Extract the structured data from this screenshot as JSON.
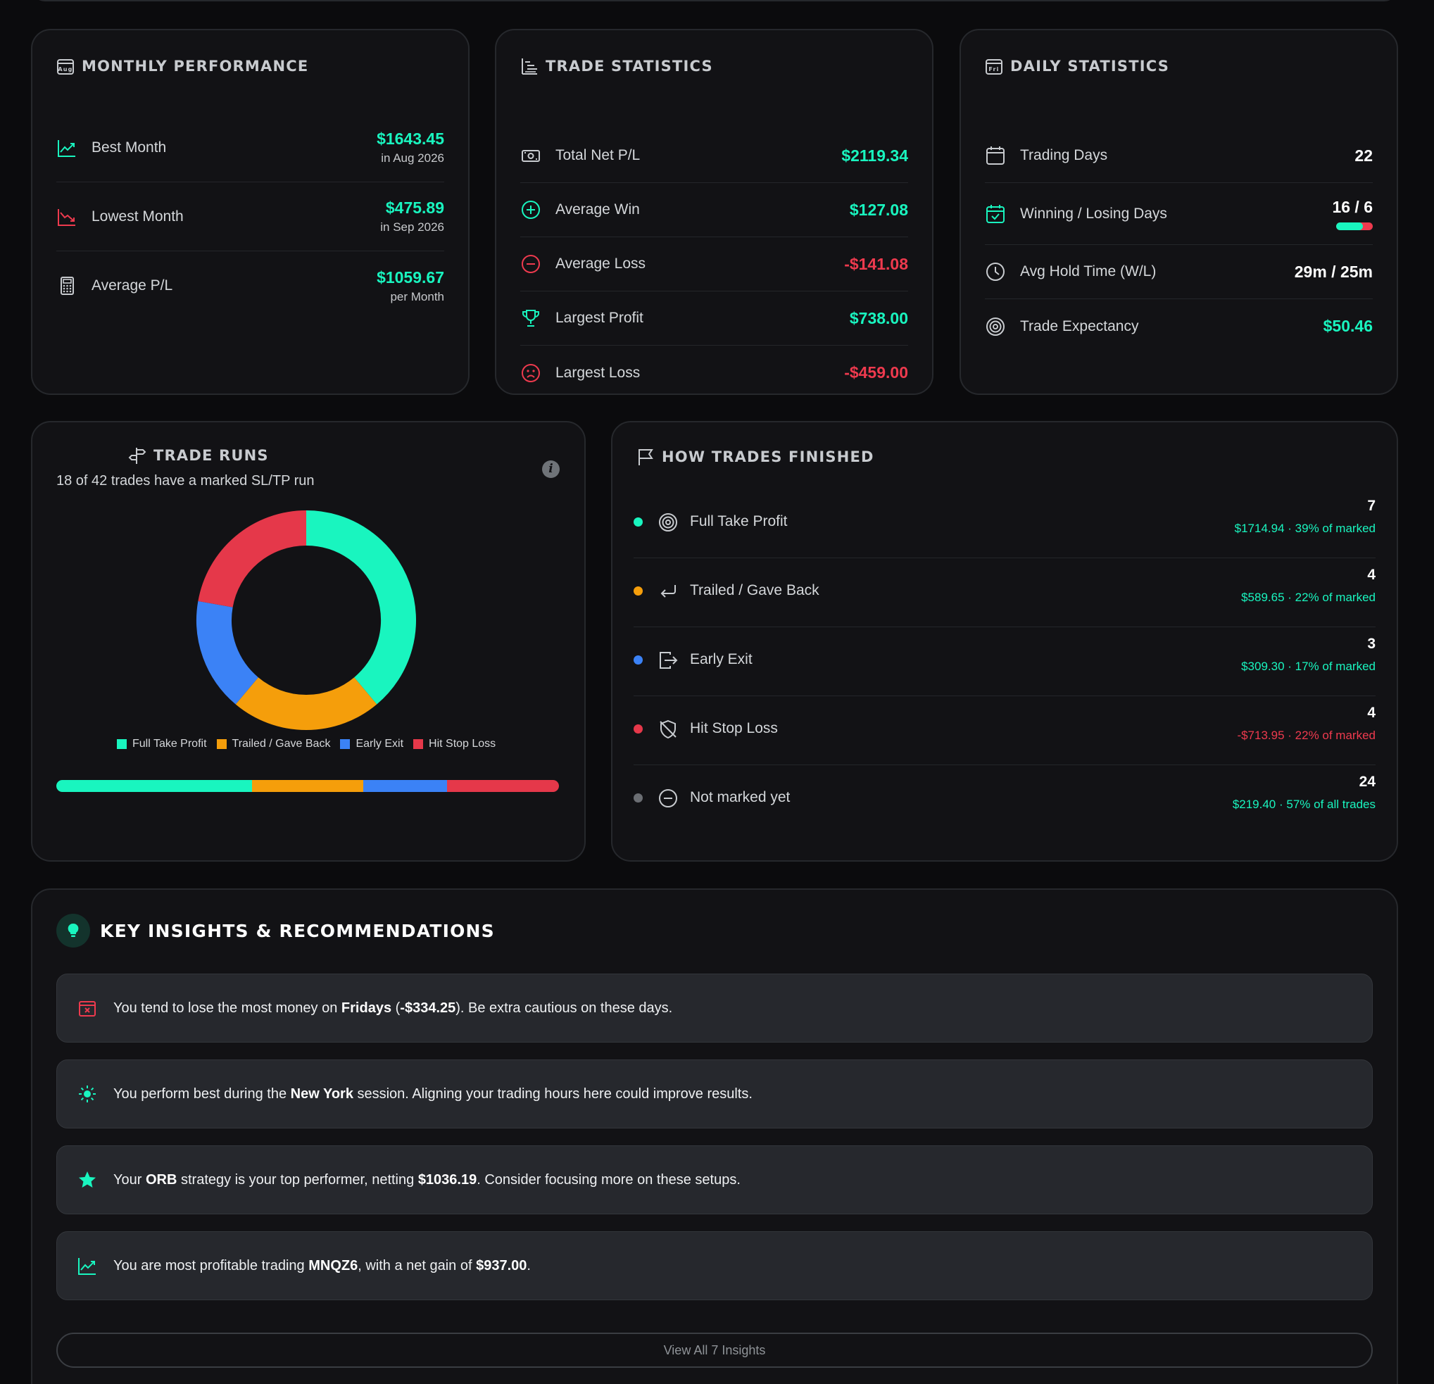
{
  "colors": {
    "green": "#19f5bf",
    "orange": "#f59e0b",
    "blue": "#3b82f6",
    "red": "#e5384a",
    "gray": "#6b6e73"
  },
  "monthly": {
    "title": "MONTHLY PERFORMANCE",
    "icon": "calendar-aug-icon",
    "icon_text": "Aug",
    "rows": [
      {
        "label": "Best Month",
        "value": "$1643.45",
        "sub": "in Aug 2026",
        "icon": "trending-up-icon"
      },
      {
        "label": "Lowest Month",
        "value": "$475.89",
        "sub": "in Sep 2026",
        "icon": "trending-down-icon"
      },
      {
        "label": "Average P/L",
        "value": "$1059.67",
        "sub": "per Month",
        "icon": "calculator-icon"
      }
    ]
  },
  "trade_stats": {
    "title": "TRADE STATISTICS",
    "icon": "list-bars-icon",
    "rows": [
      {
        "label": "Total Net P/L",
        "value": "$2119.34",
        "icon": "cash-icon"
      },
      {
        "label": "Average Win",
        "value": "$127.08",
        "icon": "plus-circle-icon"
      },
      {
        "label": "Average Loss",
        "value": "-$141.08",
        "icon": "minus-circle-icon"
      },
      {
        "label": "Largest Profit",
        "value": "$738.00",
        "icon": "trophy-icon"
      },
      {
        "label": "Largest Loss",
        "value": "-$459.00",
        "icon": "sad-face-icon"
      }
    ]
  },
  "daily": {
    "title": "DAILY STATISTICS",
    "icon": "calendar-fri-icon",
    "icon_text": "Fri",
    "rows": [
      {
        "label": "Trading Days",
        "value": "22",
        "icon": "calendar-icon"
      },
      {
        "label": "Winning / Losing Days",
        "value": "16 / 6",
        "icon": "calendar-check-icon",
        "win_fraction": 0.727
      },
      {
        "label": "Avg Hold Time (W/L)",
        "value": "29m / 25m",
        "icon": "clock-icon"
      },
      {
        "label": "Trade Expectancy",
        "value": "$50.46",
        "icon": "target-icon"
      }
    ]
  },
  "trade_runs": {
    "title": "TRADE RUNS",
    "icon": "signpost-icon",
    "subtitle": "18 of 42 trades have a marked SL/TP run",
    "info_icon": "info-icon",
    "info_glyph": "i"
  },
  "chart_data": {
    "type": "pie",
    "donut": true,
    "categories": [
      "Full Take Profit",
      "Trailed / Gave Back",
      "Early Exit",
      "Hit Stop Loss"
    ],
    "values": [
      7,
      4,
      3,
      4
    ],
    "colors": [
      "#19f5bf",
      "#f59e0b",
      "#3b82f6",
      "#e5384a"
    ],
    "legend": "bottom"
  },
  "finished": {
    "title": "HOW TRADES FINISHED",
    "icon": "flag-icon",
    "rows": [
      {
        "label": "Full Take Profit",
        "count": "7",
        "sub": "$1714.94 · 39% of marked",
        "dot": "#19f5bf",
        "icon": "target-icon",
        "tone": "green"
      },
      {
        "label": "Trailed / Gave Back",
        "count": "4",
        "sub": "$589.65 · 22% of marked",
        "dot": "#f59e0b",
        "icon": "return-arrow-icon",
        "tone": "green"
      },
      {
        "label": "Early Exit",
        "count": "3",
        "sub": "$309.30 · 17% of marked",
        "dot": "#3b82f6",
        "icon": "exit-icon",
        "tone": "green"
      },
      {
        "label": "Hit Stop Loss",
        "count": "4",
        "sub": "-$713.95 · 22% of marked",
        "dot": "#e5384a",
        "icon": "shield-off-icon",
        "tone": "red"
      },
      {
        "label": "Not marked yet",
        "count": "24",
        "sub": "$219.40 · 57% of all trades",
        "dot": "#6b6e73",
        "icon": "minus-circle-icon",
        "tone": "green"
      }
    ]
  },
  "insights": {
    "title": "KEY INSIGHTS & RECOMMENDATIONS",
    "icon": "lightbulb-icon",
    "items": [
      {
        "icon": "calendar-x-icon",
        "parts": [
          "You tend to lose the most money on ",
          "Fridays",
          " (",
          "-$334.25",
          "). Be extra cautious on these days."
        ]
      },
      {
        "icon": "sun-icon",
        "parts": [
          "You perform best during the ",
          "New York",
          " session. Aligning your trading hours here could improve results.",
          "",
          ""
        ]
      },
      {
        "icon": "star-icon",
        "parts": [
          "Your ",
          "ORB",
          " strategy is your top performer, netting ",
          "$1036.19",
          ". Consider focusing more on these setups."
        ]
      },
      {
        "icon": "trending-up-icon",
        "parts": [
          "You are most profitable trading ",
          "MNQZ6",
          ", with a net gain of ",
          "$937.00",
          "."
        ]
      }
    ],
    "view_all": "View All 7 Insights"
  }
}
